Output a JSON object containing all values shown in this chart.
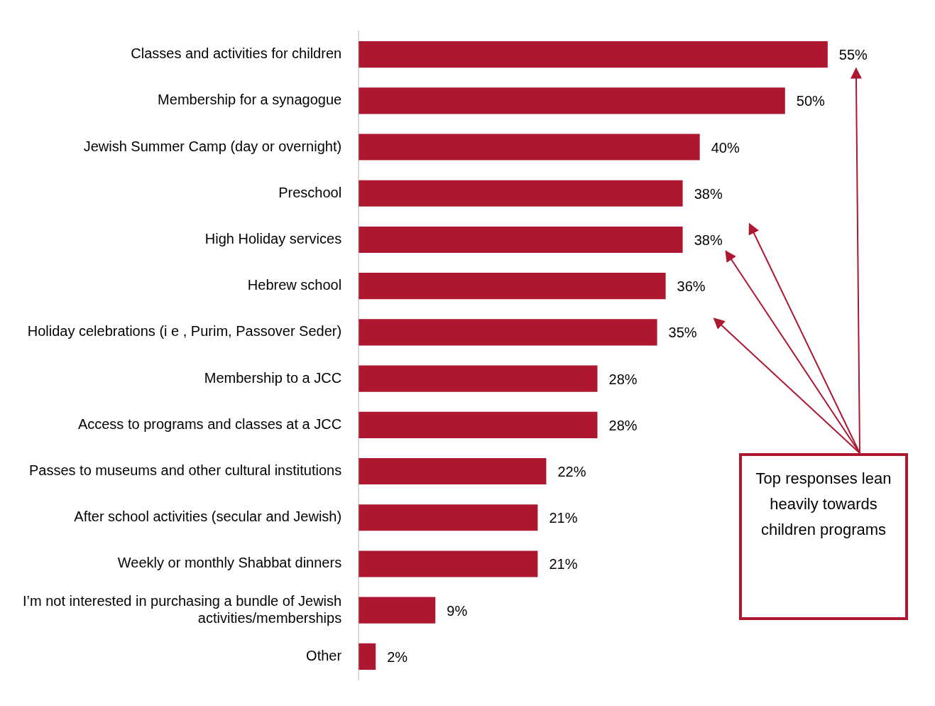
{
  "chart_data": {
    "type": "bar",
    "orientation": "horizontal",
    "categories": [
      "Classes and activities for children",
      "Membership for a synagogue",
      "Jewish Summer Camp (day or overnight)",
      "Preschool",
      "High Holiday services",
      "Hebrew school",
      "Holiday celebrations (i e , Purim, Passover Seder)",
      "Membership to a JCC",
      "Access to programs and classes at a JCC",
      "Passes to museums and other cultural institutions",
      "After school activities (secular and Jewish)",
      "Weekly or monthly Shabbat dinners",
      "I’m not interested in purchasing a bundle of Jewish activities/memberships",
      "Other"
    ],
    "values": [
      55,
      50,
      40,
      38,
      38,
      36,
      35,
      28,
      28,
      22,
      21,
      21,
      9,
      2
    ],
    "value_labels": [
      "55%",
      "50%",
      "40%",
      "38%",
      "38%",
      "36%",
      "35%",
      "28%",
      "28%",
      "22%",
      "21%",
      "21%",
      "9%",
      "2%"
    ],
    "color": "#ad1730",
    "annotations": [
      "Top responses lean heavily towards children programs"
    ]
  }
}
